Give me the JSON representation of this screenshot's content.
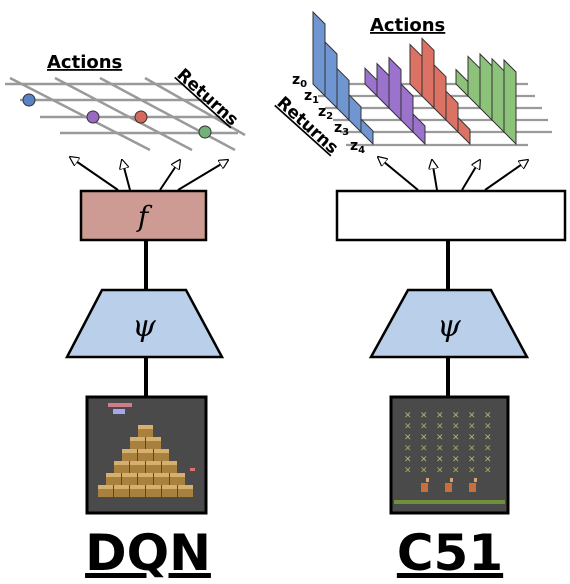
{
  "dqn": {
    "title": "DQN",
    "actions_label": "Actions",
    "returns_label": "Returns",
    "head_symbol": "f",
    "encoder_symbol": "ψ",
    "game": "qbert",
    "head_color": "#cd9a94",
    "encoder_color": "#b9cfea",
    "action_dot_colors": [
      "#5b82c4",
      "#9a6ac2",
      "#d2695a",
      "#72b27a"
    ]
  },
  "c51": {
    "title": "C51",
    "actions_label": "Actions",
    "returns_label": "Returns",
    "encoder_symbol": "ψ",
    "game": "space-invaders",
    "head_color": "#ffffff",
    "encoder_color": "#b9cfea",
    "z_labels": [
      "z0",
      "z1",
      "z2",
      "z3",
      "z4"
    ],
    "distribution_colors": [
      "#6f96d0",
      "#9b72cc",
      "#dc7264",
      "#8cc27a"
    ],
    "distributions": [
      [
        1.0,
        0.75,
        0.55,
        0.35,
        0.18
      ],
      [
        0.22,
        0.45,
        0.7,
        0.5,
        0.25
      ],
      [
        0.55,
        0.8,
        0.6,
        0.4,
        0.2
      ],
      [
        0.2,
        0.55,
        0.75,
        0.85,
        1.0
      ]
    ]
  }
}
